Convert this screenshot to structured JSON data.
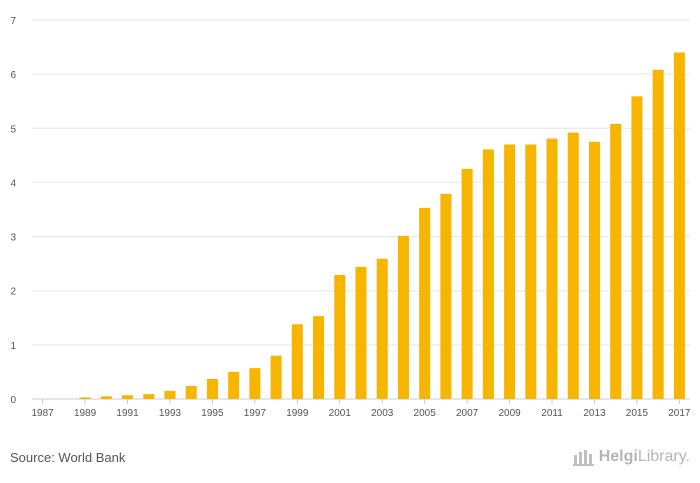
{
  "chart_data": {
    "type": "bar",
    "title": "",
    "xlabel": "",
    "ylabel": "",
    "ylim": [
      0,
      7
    ],
    "yticks": [
      0,
      1,
      2,
      3,
      4,
      5,
      6,
      7
    ],
    "categories": [
      "1987",
      "1988",
      "1989",
      "1990",
      "1991",
      "1992",
      "1993",
      "1994",
      "1995",
      "1996",
      "1997",
      "1998",
      "1999",
      "2000",
      "2001",
      "2002",
      "2003",
      "2004",
      "2005",
      "2006",
      "2007",
      "2008",
      "2009",
      "2010",
      "2011",
      "2012",
      "2013",
      "2014",
      "2015",
      "2016",
      "2017"
    ],
    "xtick_labels": [
      "1987",
      "1989",
      "1991",
      "1993",
      "1995",
      "1997",
      "1999",
      "2001",
      "2003",
      "2005",
      "2007",
      "2009",
      "2011",
      "2013",
      "2015",
      "2017"
    ],
    "values": [
      0,
      0.0,
      0.03,
      0.05,
      0.07,
      0.09,
      0.15,
      0.24,
      0.37,
      0.5,
      0.57,
      0.8,
      1.38,
      1.53,
      2.29,
      2.44,
      2.59,
      3.01,
      3.53,
      3.79,
      4.25,
      4.61,
      4.7,
      4.7,
      4.81,
      4.92,
      4.75,
      5.08,
      5.59,
      6.08,
      6.4
    ],
    "bar_color": "#f7b500",
    "grid": true
  },
  "footer": {
    "source": "Source: World Bank",
    "logo_text_bold": "Helgi",
    "logo_text_rest": "Library."
  }
}
